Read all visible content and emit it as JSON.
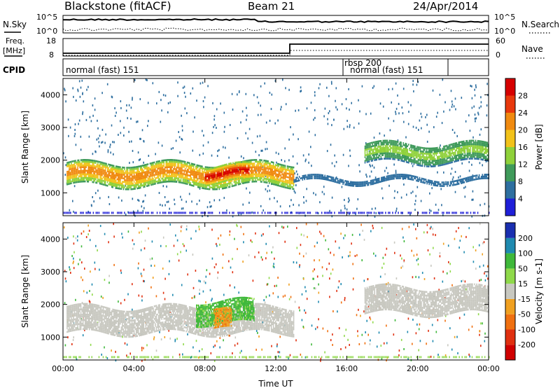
{
  "header": {
    "station": "Blackstone (fitACF)",
    "beam": "Beam 21",
    "date": "24/Apr/2014"
  },
  "top_panels": {
    "nsky_label": "N.Sky",
    "nsearch_label": "N.Search",
    "freq_label_1": "Freq.",
    "freq_label_2": "[MHz]",
    "nave_label": "Nave",
    "cpid_label": "CPID",
    "noise_ticks": [
      "10^5",
      "10^0"
    ],
    "freq_ticks": [
      "18",
      "8"
    ],
    "nave_ticks": [
      "60",
      "0"
    ]
  },
  "cpid_segments": [
    {
      "label": "normal (fast) 151"
    },
    {
      "label": "rbsp 200"
    },
    {
      "label": "normal (fast) 151"
    }
  ],
  "chart_data": [
    {
      "type": "heatmap",
      "name": "power",
      "xlabel": "",
      "ylabel": "Slant Range [km]",
      "x_ticks": [
        "00:00",
        "04:00",
        "08:00",
        "12:00",
        "16:00",
        "20:00",
        "00:00"
      ],
      "y_ticks": [
        1000,
        2000,
        3000,
        4000
      ],
      "ylim": [
        300,
        4500
      ],
      "colorbar": {
        "label": "Power [dB]",
        "ticks": [
          4,
          8,
          12,
          16,
          20,
          24,
          28
        ],
        "colors": [
          "#1f1fd8",
          "#2e6fa0",
          "#3f9a5a",
          "#8fd13a",
          "#f2c21a",
          "#f08a10",
          "#e8380c",
          "#d60000"
        ]
      },
      "bands": [
        {
          "time_h": [
            0.2,
            13.0
          ],
          "range_km": [
            1200,
            1900
          ],
          "level": 20
        },
        {
          "time_h": [
            8.0,
            10.5
          ],
          "range_km": [
            1300,
            1800
          ],
          "level": 28
        },
        {
          "time_h": [
            13.0,
            24.0
          ],
          "range_km": [
            1300,
            1450
          ],
          "level": 6
        },
        {
          "time_h": [
            17.0,
            24.0
          ],
          "range_km": [
            1900,
            2500
          ],
          "level": 12
        }
      ]
    },
    {
      "type": "heatmap",
      "name": "velocity",
      "xlabel": "Time UT",
      "ylabel": "Slant Range [km]",
      "x_ticks": [
        "00:00",
        "04:00",
        "08:00",
        "12:00",
        "16:00",
        "20:00",
        "00:00"
      ],
      "y_ticks": [
        1000,
        2000,
        3000,
        4000
      ],
      "ylim": [
        300,
        4500
      ],
      "colorbar": {
        "label": "Velocity [m s-1]",
        "ticks": [
          200,
          100,
          50,
          15,
          -15,
          -50,
          -100,
          -200
        ],
        "colors": [
          "#1a2fb0",
          "#1f8ab0",
          "#3fb83a",
          "#8fd94a",
          "#c8c8c0",
          "#f0a020",
          "#f07010",
          "#e03010",
          "#d00000"
        ]
      },
      "bands": [
        {
          "time_h": [
            0.2,
            13.0
          ],
          "range_km": [
            1100,
            1900
          ],
          "level": 0
        },
        {
          "time_h": [
            7.5,
            10.8
          ],
          "range_km": [
            1400,
            2100
          ],
          "level": 60
        },
        {
          "time_h": [
            8.5,
            9.5
          ],
          "range_km": [
            1200,
            1800
          ],
          "level": -40
        },
        {
          "time_h": [
            17.0,
            24.0
          ],
          "range_km": [
            1700,
            2500
          ],
          "level": 0
        }
      ]
    }
  ]
}
